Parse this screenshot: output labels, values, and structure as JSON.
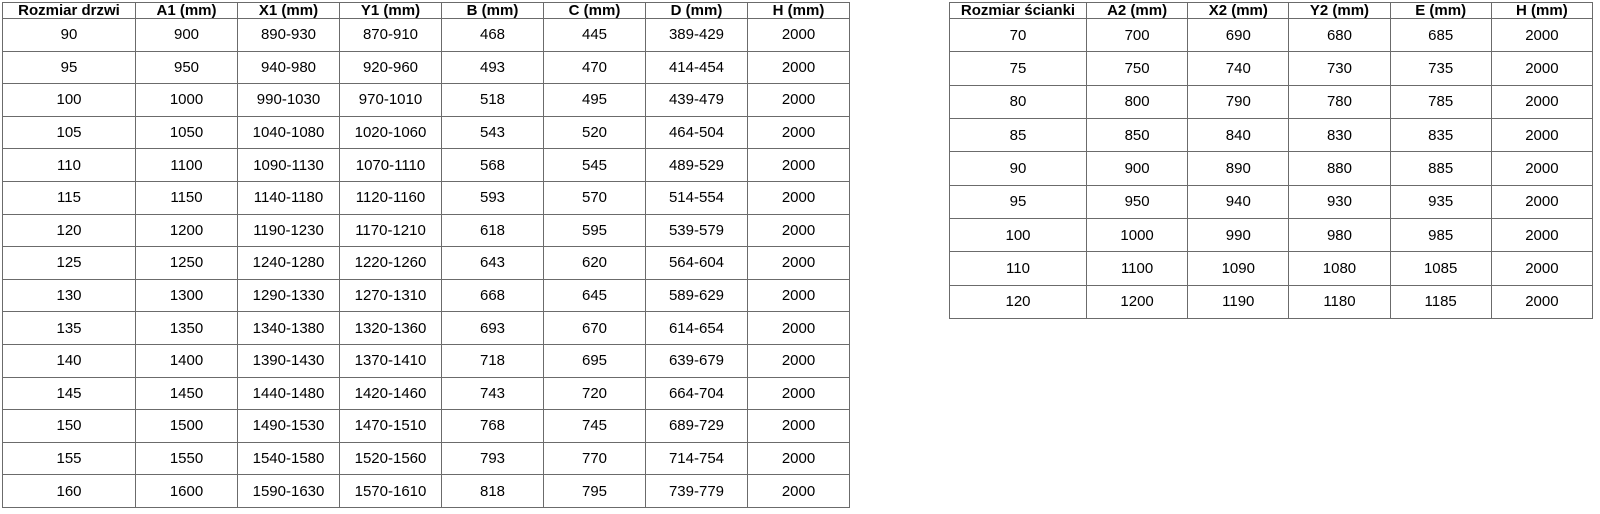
{
  "page": {
    "background": "#ffffff",
    "border_color": "#6b6b6b",
    "text_color": "#000000"
  },
  "door_table": {
    "headers": [
      "Rozmiar drzwi",
      "A1 (mm)",
      "X1 (mm)",
      "Y1 (mm)",
      "B (mm)",
      "C (mm)",
      "D (mm)",
      "H (mm)"
    ],
    "rows": [
      [
        "90",
        "900",
        "890-930",
        "870-910",
        "468",
        "445",
        "389-429",
        "2000"
      ],
      [
        "95",
        "950",
        "940-980",
        "920-960",
        "493",
        "470",
        "414-454",
        "2000"
      ],
      [
        "100",
        "1000",
        "990-1030",
        "970-1010",
        "518",
        "495",
        "439-479",
        "2000"
      ],
      [
        "105",
        "1050",
        "1040-1080",
        "1020-1060",
        "543",
        "520",
        "464-504",
        "2000"
      ],
      [
        "110",
        "1100",
        "1090-1130",
        "1070-1110",
        "568",
        "545",
        "489-529",
        "2000"
      ],
      [
        "115",
        "1150",
        "1140-1180",
        "1120-1160",
        "593",
        "570",
        "514-554",
        "2000"
      ],
      [
        "120",
        "1200",
        "1190-1230",
        "1170-1210",
        "618",
        "595",
        "539-579",
        "2000"
      ],
      [
        "125",
        "1250",
        "1240-1280",
        "1220-1260",
        "643",
        "620",
        "564-604",
        "2000"
      ],
      [
        "130",
        "1300",
        "1290-1330",
        "1270-1310",
        "668",
        "645",
        "589-629",
        "2000"
      ],
      [
        "135",
        "1350",
        "1340-1380",
        "1320-1360",
        "693",
        "670",
        "614-654",
        "2000"
      ],
      [
        "140",
        "1400",
        "1390-1430",
        "1370-1410",
        "718",
        "695",
        "639-679",
        "2000"
      ],
      [
        "145",
        "1450",
        "1440-1480",
        "1420-1460",
        "743",
        "720",
        "664-704",
        "2000"
      ],
      [
        "150",
        "1500",
        "1490-1530",
        "1470-1510",
        "768",
        "745",
        "689-729",
        "2000"
      ],
      [
        "155",
        "1550",
        "1540-1580",
        "1520-1560",
        "793",
        "770",
        "714-754",
        "2000"
      ],
      [
        "160",
        "1600",
        "1590-1630",
        "1570-1610",
        "818",
        "795",
        "739-779",
        "2000"
      ]
    ]
  },
  "wall_table": {
    "headers": [
      "Rozmiar ścianki",
      "A2 (mm)",
      "X2 (mm)",
      "Y2 (mm)",
      "E (mm)",
      "H (mm)"
    ],
    "rows": [
      [
        "70",
        "700",
        "690",
        "680",
        "685",
        "2000"
      ],
      [
        "75",
        "750",
        "740",
        "730",
        "735",
        "2000"
      ],
      [
        "80",
        "800",
        "790",
        "780",
        "785",
        "2000"
      ],
      [
        "85",
        "850",
        "840",
        "830",
        "835",
        "2000"
      ],
      [
        "90",
        "900",
        "890",
        "880",
        "885",
        "2000"
      ],
      [
        "95",
        "950",
        "940",
        "930",
        "935",
        "2000"
      ],
      [
        "100",
        "1000",
        "990",
        "980",
        "985",
        "2000"
      ],
      [
        "110",
        "1100",
        "1090",
        "1080",
        "1085",
        "2000"
      ],
      [
        "120",
        "1200",
        "1190",
        "1180",
        "1185",
        "2000"
      ]
    ]
  }
}
